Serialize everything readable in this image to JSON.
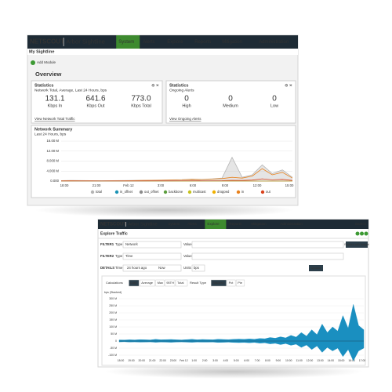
{
  "top": {
    "brand": "NETSCOUT",
    "product": "Arbor Sightline",
    "nav": [
      "System",
      "Alerts",
      "Explore",
      "Reports",
      "Mitigation",
      "Administration"
    ],
    "page_title": "My Sightline",
    "add_module": "Add Module",
    "section": "Overview",
    "stats": {
      "title": "Statistics",
      "subtitle": "Network Total, Average, Last 24 Hours, bps",
      "items": [
        {
          "value": "131.1",
          "label": "Kbps In"
        },
        {
          "value": "641.6",
          "label": "Kbps Out"
        },
        {
          "value": "773.0",
          "label": "Kbps Total"
        }
      ],
      "link": "View Network Total Traffic"
    },
    "alerts": {
      "title": "Statistics",
      "subtitle": "Ongoing Alerts",
      "items": [
        {
          "value": "0",
          "label": "High"
        },
        {
          "value": "0",
          "label": "Medium"
        },
        {
          "value": "0",
          "label": "Low"
        }
      ],
      "link": "View Ongoing Alerts"
    },
    "summary": {
      "title": "Network Summary",
      "subtitle": "Last 24 Hours, bps",
      "ylim": [
        0,
        16000000
      ],
      "yticks": [
        {
          "value": 0,
          "label": "0.000"
        },
        {
          "value": 4000000,
          "label": "4.000 M"
        },
        {
          "value": 8000000,
          "label": "8.000 M"
        },
        {
          "value": 12000000,
          "label": "12.00 M"
        },
        {
          "value": 16000000,
          "label": "16.00 M"
        }
      ],
      "x_labels": [
        "18:00",
        "21:00",
        "Feb 12",
        "3:00",
        "6:00",
        "9:00",
        "12:00",
        "15:00"
      ],
      "series": [
        {
          "name": "total",
          "color": "#b5b5b5",
          "values": [
            200000,
            250000,
            220000,
            200000,
            180000,
            200000,
            220000,
            250000,
            300000,
            350000,
            400000,
            500000,
            600000,
            800000,
            700000,
            900000,
            1200000,
            9500000,
            1500000,
            2500000,
            6500000,
            3000000,
            4500000,
            1500000
          ]
        },
        {
          "name": "in_offnet",
          "color": "#1b93b5",
          "values": [
            20000,
            20000,
            20000,
            20000,
            20000,
            20000,
            20000,
            20000,
            20000,
            20000,
            20000,
            20000,
            20000,
            20000,
            20000,
            20000,
            20000,
            20000,
            20000,
            20000,
            20000,
            20000,
            20000,
            20000
          ]
        },
        {
          "name": "out_offnet",
          "color": "#8c8c8c",
          "values": [
            30000,
            30000,
            30000,
            30000,
            30000,
            30000,
            30000,
            30000,
            30000,
            30000,
            30000,
            30000,
            30000,
            30000,
            30000,
            30000,
            30000,
            30000,
            30000,
            30000,
            30000,
            30000,
            30000,
            30000
          ]
        },
        {
          "name": "backbone",
          "color": "#5c9e3f",
          "values": [
            40000,
            40000,
            40000,
            40000,
            40000,
            40000,
            40000,
            40000,
            40000,
            40000,
            40000,
            40000,
            40000,
            40000,
            40000,
            40000,
            40000,
            40000,
            40000,
            40000,
            40000,
            40000,
            40000,
            40000
          ]
        },
        {
          "name": "multicast",
          "color": "#c5c21f",
          "values": [
            10000,
            10000,
            10000,
            10000,
            10000,
            10000,
            10000,
            10000,
            10000,
            10000,
            10000,
            10000,
            10000,
            10000,
            10000,
            10000,
            10000,
            10000,
            10000,
            10000,
            10000,
            10000,
            10000,
            10000
          ]
        },
        {
          "name": "dropped",
          "color": "#f0b000",
          "values": [
            0,
            0,
            0,
            0,
            0,
            0,
            0,
            0,
            0,
            0,
            0,
            0,
            0,
            0,
            0,
            0,
            0,
            0,
            0,
            0,
            0,
            0,
            0,
            0
          ]
        },
        {
          "name": "in",
          "color": "#e8821e",
          "values": [
            150000,
            180000,
            160000,
            150000,
            140000,
            150000,
            170000,
            200000,
            250000,
            300000,
            350000,
            450000,
            500000,
            700000,
            600000,
            800000,
            1000000,
            1500000,
            1200000,
            2000000,
            5000000,
            2500000,
            3500000,
            1200000
          ]
        },
        {
          "name": "out",
          "color": "#d9431e",
          "values": [
            50000,
            60000,
            50000,
            50000,
            40000,
            50000,
            50000,
            60000,
            70000,
            80000,
            90000,
            100000,
            120000,
            150000,
            130000,
            160000,
            200000,
            300000,
            250000,
            400000,
            900000,
            500000,
            700000,
            250000
          ]
        }
      ]
    }
  },
  "bottom": {
    "brand": "NETSCOUT",
    "product": "Arbor Sightline",
    "nav": [
      "System",
      "Alerts",
      "Explore",
      "Reports",
      "Mitigation",
      "Administration"
    ],
    "search": "Search",
    "page_title": "Explore Traffic",
    "filters": [
      {
        "name": "FILTER1",
        "type_label": "Type",
        "type": "Network",
        "value_label": "Value"
      },
      {
        "name": "FILTER2",
        "type_label": "Type",
        "type": "Time",
        "value_label": "Value"
      }
    ],
    "details": {
      "name": "DETAILS",
      "time_label": "Time",
      "from": "24 hours ago",
      "to": "Now",
      "units_label": "Units",
      "units": "bps"
    },
    "insight": "Explore with Insight",
    "update": "Update",
    "tabs": [
      "Calculations",
      "Last",
      "Average",
      "Max",
      "95TH",
      "Total",
      "Result Type",
      "Stacked",
      "Pct",
      "Pie"
    ],
    "chart": {
      "axis_label": "bps (Stacked)",
      "ylim": [
        -100000000,
        300000000
      ],
      "yticks": [
        {
          "value": 300000000,
          "label": "300 M"
        },
        {
          "value": 250000000,
          "label": "250 M"
        },
        {
          "value": 200000000,
          "label": "200 M"
        },
        {
          "value": 150000000,
          "label": "150 M"
        },
        {
          "value": 100000000,
          "label": "100 M"
        },
        {
          "value": 50000000,
          "label": "50 M"
        },
        0,
        {
          "value": -50000000,
          "label": "-50 M"
        },
        {
          "value": -100000000,
          "label": "-100 M"
        }
      ],
      "x_labels": [
        "18:00",
        "19:00",
        "20:00",
        "21:00",
        "22:00",
        "23:00",
        "Feb 12",
        "1:00",
        "2:00",
        "3:00",
        "4:00",
        "5:00",
        "6:00",
        "7:00",
        "8:00",
        "9:00",
        "10:00",
        "11:00",
        "12:00",
        "13:00",
        "14:00",
        "15:00",
        "16:00",
        "17:00"
      ],
      "series": [
        {
          "color": "#1a8fc0",
          "values": [
            8000000,
            7000000,
            9000000,
            8000000,
            10000000,
            9000000,
            8000000,
            12000000,
            9000000,
            10000000,
            11000000,
            9000000,
            8000000,
            10000000,
            12000000,
            9000000,
            11000000,
            10000000,
            9000000,
            13000000,
            11000000,
            10000000,
            12000000,
            14000000,
            12000000,
            15000000,
            13000000,
            18000000,
            16000000,
            25000000,
            20000000,
            30000000,
            22000000,
            40000000,
            28000000,
            60000000,
            35000000,
            80000000,
            45000000,
            120000000,
            60000000,
            100000000,
            70000000,
            180000000,
            90000000,
            260000000,
            110000000,
            80000000
          ]
        },
        {
          "color": "#1a8fc0",
          "values": [
            -6000000,
            -5000000,
            -7000000,
            -6000000,
            -8000000,
            -7000000,
            -6000000,
            -9000000,
            -7000000,
            -8000000,
            -9000000,
            -7000000,
            -6000000,
            -8000000,
            -9000000,
            -7000000,
            -8000000,
            -8000000,
            -7000000,
            -10000000,
            -9000000,
            -8000000,
            -10000000,
            -11000000,
            -10000000,
            -12000000,
            -10000000,
            -15000000,
            -13000000,
            -20000000,
            -16000000,
            -25000000,
            -18000000,
            -30000000,
            -22000000,
            -45000000,
            -28000000,
            -60000000,
            -35000000,
            -80000000,
            -45000000,
            -70000000,
            -50000000,
            -110000000,
            -60000000,
            -140000000,
            -70000000,
            -50000000
          ]
        }
      ]
    }
  }
}
